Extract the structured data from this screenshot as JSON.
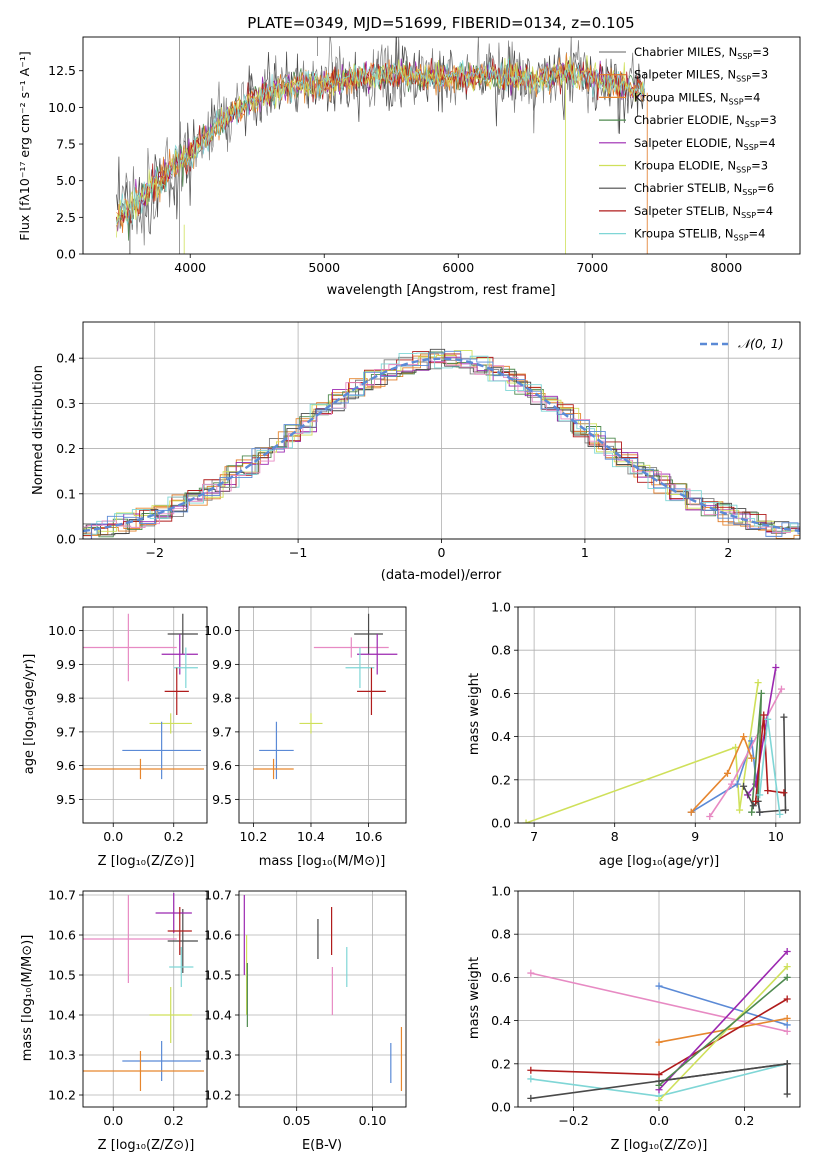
{
  "colors": {
    "chabrier_miles": "#808080",
    "salpeter_miles": "#e07a26",
    "kroupa_miles": "#e6862e",
    "chabrier_elodie": "#4f8a4f",
    "salpeter_elodie": "#9b27b0",
    "kroupa_elodie": "#cfe05a",
    "chabrier_stelib": "#4a4a4a",
    "salpeter_stelib": "#b01c1c",
    "kroupa_stelib": "#7fd6d6",
    "pink": "#e78ac3",
    "blue": "#5b8ad6",
    "gaussian": "#5b8ad6"
  },
  "chart_data": [
    {
      "id": "spectrum",
      "type": "line",
      "title": "PLATE=0349, MJD=51699, FIBERID=0134, z=0.105",
      "xlabel": "wavelength [Angstrom, rest frame]",
      "ylabel": "Flux [fλ10⁻¹⁷ erg cm⁻² s⁻¹ A⁻¹]",
      "xlim": [
        3200,
        8550
      ],
      "ylim": [
        0,
        14.8
      ],
      "xticks": [
        "4000",
        "5000",
        "6000",
        "7000",
        "8000"
      ],
      "yticks": [
        "0.0",
        "2.5",
        "5.0",
        "7.5",
        "10.0",
        "12.5"
      ],
      "grid": false,
      "legend_position": "top-right",
      "legend": [
        {
          "label": "Chabrier MILES, N",
          "sub": "SSP",
          "suffix": "=3",
          "color": "#808080"
        },
        {
          "label": "Salpeter MILES, N",
          "sub": "SSP",
          "suffix": "=3",
          "color": "#e07a26"
        },
        {
          "label": "Kroupa MILES, N",
          "sub": "SSP",
          "suffix": "=4",
          "color": "#e6862e"
        },
        {
          "label": "Chabrier ELODIE, N",
          "sub": "SSP",
          "suffix": "=3",
          "color": "#4f8a4f"
        },
        {
          "label": "Salpeter ELODIE, N",
          "sub": "SSP",
          "suffix": "=4",
          "color": "#9b27b0"
        },
        {
          "label": "Kroupa ELODIE, N",
          "sub": "SSP",
          "suffix": "=3",
          "color": "#cfe05a"
        },
        {
          "label": "Chabrier STELIB, N",
          "sub": "SSP",
          "suffix": "=6",
          "color": "#4a4a4a"
        },
        {
          "label": "Salpeter STELIB, N",
          "sub": "SSP",
          "suffix": "=4",
          "color": "#b01c1c"
        },
        {
          "label": "Kroupa STELIB, N",
          "sub": "SSP",
          "suffix": "=4",
          "color": "#7fd6d6"
        }
      ],
      "continuum": {
        "x": [
          3450,
          3550,
          3650,
          3750,
          3850,
          3950,
          4050,
          4150,
          4300,
          4450,
          4600,
          4800,
          5000,
          5200,
          5400,
          5600,
          5800,
          6000,
          6200,
          6400,
          6600,
          6800,
          7000,
          7200,
          7400
        ],
        "y": [
          2.5,
          3.0,
          3.9,
          5.0,
          5.8,
          6.5,
          7.3,
          8.2,
          9.5,
          10.3,
          11.1,
          11.5,
          11.6,
          12.0,
          12.2,
          12.2,
          12.0,
          12.1,
          12.2,
          12.0,
          11.9,
          12.3,
          12.0,
          11.6,
          11.0
        ]
      }
    },
    {
      "id": "residuals",
      "type": "histogram",
      "xlabel": "(data-model)/error",
      "ylabel": "Normed distribution",
      "xlim": [
        -2.5,
        2.5
      ],
      "ylim": [
        0,
        0.48
      ],
      "xticks": [
        "−2",
        "−1",
        "0",
        "1",
        "2"
      ],
      "yticks": [
        "0.0",
        "0.1",
        "0.2",
        "0.3",
        "0.4"
      ],
      "grid": true,
      "legend_position": "top-right",
      "legend_label": "𝒩(0, 1)",
      "gaussian": {
        "mean": 0,
        "sigma": 1
      }
    },
    {
      "id": "age_vs_z",
      "type": "errorbar",
      "xlabel": "Z [log₁₀(Z/Z⊙)]",
      "ylabel": "age  [log₁₀(age/yr)]",
      "xlim": [
        -0.1,
        0.31
      ],
      "ylim": [
        9.43,
        10.07
      ],
      "xticks": [
        0.0,
        0.2
      ],
      "yticks": [
        9.5,
        9.6,
        9.7,
        9.8,
        9.9,
        10.0
      ],
      "points": [
        {
          "x": 0.05,
          "xerr": 0.16,
          "y": 9.95,
          "yerr": 0.1,
          "color": "#e78ac3"
        },
        {
          "x": 0.23,
          "xerr": 0.05,
          "y": 9.99,
          "yerr": 0.06,
          "color": "#4a4a4a"
        },
        {
          "x": 0.22,
          "xerr": 0.06,
          "y": 9.93,
          "yerr": 0.06,
          "color": "#9b27b0"
        },
        {
          "x": 0.24,
          "xerr": 0.04,
          "y": 9.89,
          "yerr": 0.06,
          "color": "#7fd6d6"
        },
        {
          "x": 0.21,
          "xerr": 0.04,
          "y": 9.82,
          "yerr": 0.07,
          "color": "#b01c1c"
        },
        {
          "x": 0.19,
          "xerr": 0.07,
          "y": 9.725,
          "yerr": 0.03,
          "color": "#cfe05a"
        },
        {
          "x": 0.16,
          "xerr": 0.13,
          "y": 9.645,
          "yerr": 0.085,
          "color": "#5b8ad6"
        },
        {
          "x": 0.09,
          "xerr": 0.21,
          "y": 9.59,
          "yerr": 0.03,
          "color": "#e6862e"
        }
      ]
    },
    {
      "id": "age_vs_mass",
      "type": "errorbar",
      "xlabel": "mass [log₁₀(M/M⊙)]",
      "ylabel": "",
      "xlim": [
        10.15,
        10.73
      ],
      "ylim": [
        9.43,
        10.07
      ],
      "xticks": [
        10.2,
        10.4,
        10.6
      ],
      "yticks": [
        9.5,
        9.6,
        9.7,
        9.8,
        9.9,
        10.0
      ],
      "points": [
        {
          "x": 10.54,
          "xerr": 0.13,
          "y": 9.95,
          "yerr": 0.03,
          "color": "#e78ac3"
        },
        {
          "x": 10.6,
          "xerr": 0.05,
          "y": 9.99,
          "yerr": 0.06,
          "color": "#4a4a4a"
        },
        {
          "x": 10.63,
          "xerr": 0.07,
          "y": 9.93,
          "yerr": 0.06,
          "color": "#9b27b0"
        },
        {
          "x": 10.57,
          "xerr": 0.05,
          "y": 9.89,
          "yerr": 0.06,
          "color": "#7fd6d6"
        },
        {
          "x": 10.61,
          "xerr": 0.05,
          "y": 9.82,
          "yerr": 0.07,
          "color": "#b01c1c"
        },
        {
          "x": 10.4,
          "xerr": 0.04,
          "y": 9.725,
          "yerr": 0.03,
          "color": "#cfe05a"
        },
        {
          "x": 10.28,
          "xerr": 0.06,
          "y": 9.645,
          "yerr": 0.085,
          "color": "#5b8ad6"
        },
        {
          "x": 10.27,
          "xerr": 0.07,
          "y": 9.59,
          "yerr": 0.03,
          "color": "#e6862e"
        }
      ]
    },
    {
      "id": "mass_weight_vs_age",
      "type": "line",
      "xlabel": "age  [log₁₀(age/yr)]",
      "ylabel": "mass weight",
      "xlim": [
        6.8,
        10.3
      ],
      "ylim": [
        0,
        1
      ],
      "xticks": [
        7,
        8,
        9,
        10
      ],
      "yticks": [
        0.0,
        0.2,
        0.4,
        0.6,
        0.8,
        1.0
      ],
      "grid": true,
      "series": [
        {
          "color": "#cfe05a",
          "x": [
            6.9,
            9.5,
            9.55,
            9.78
          ],
          "y": [
            0.0,
            0.35,
            0.06,
            0.65
          ]
        },
        {
          "color": "#5b8ad6",
          "x": [
            8.95,
            9.52,
            9.7,
            9.8
          ],
          "y": [
            0.05,
            0.18,
            0.38,
            0.05
          ]
        },
        {
          "color": "#e78ac3",
          "x": [
            9.18,
            9.45,
            10.07
          ],
          "y": [
            0.03,
            0.18,
            0.62
          ]
        },
        {
          "color": "#e6862e",
          "x": [
            8.95,
            9.4,
            9.6,
            9.7
          ],
          "y": [
            0.05,
            0.23,
            0.4,
            0.3
          ]
        },
        {
          "color": "#9b27b0",
          "x": [
            9.65,
            9.75,
            10.0
          ],
          "y": [
            0.13,
            0.18,
            0.72
          ]
        },
        {
          "color": "#4f8a4f",
          "x": [
            9.7,
            9.82,
            9.78
          ],
          "y": [
            0.05,
            0.6,
            0.1
          ]
        },
        {
          "color": "#4a4a4a",
          "x": [
            9.6,
            9.72,
            9.78,
            9.8,
            10.12,
            10.1
          ],
          "y": [
            0.17,
            0.08,
            0.1,
            0.05,
            0.06,
            0.49
          ]
        },
        {
          "color": "#b01c1c",
          "x": [
            9.75,
            9.85,
            9.9,
            10.1
          ],
          "y": [
            0.1,
            0.5,
            0.15,
            0.14
          ]
        },
        {
          "color": "#7fd6d6",
          "x": [
            9.8,
            9.9,
            10.05
          ],
          "y": [
            0.13,
            0.48,
            0.04
          ]
        }
      ]
    },
    {
      "id": "mass_vs_z",
      "type": "errorbar",
      "xlabel": "Z [log₁₀(Z/Z⊙)]",
      "ylabel": "mass [log₁₀(M/M⊙)]",
      "xlim": [
        -0.1,
        0.31
      ],
      "ylim": [
        10.17,
        10.71
      ],
      "xticks": [
        0.0,
        0.2
      ],
      "yticks": [
        10.2,
        10.3,
        10.4,
        10.5,
        10.6,
        10.7
      ],
      "points": [
        {
          "x": 0.05,
          "xerr": 0.16,
          "y": 10.59,
          "yerr": 0.11,
          "color": "#e78ac3"
        },
        {
          "x": 0.23,
          "xerr": 0.05,
          "y": 10.585,
          "yerr": 0.08,
          "color": "#4a4a4a"
        },
        {
          "x": 0.2,
          "xerr": 0.06,
          "y": 10.655,
          "yerr": 0.05,
          "color": "#9b27b0"
        },
        {
          "x": 0.22,
          "xerr": 0.04,
          "y": 10.61,
          "yerr": 0.06,
          "color": "#b01c1c"
        },
        {
          "x": 0.225,
          "xerr": 0.04,
          "y": 10.52,
          "yerr": 0.05,
          "color": "#7fd6d6"
        },
        {
          "x": 0.19,
          "xerr": 0.07,
          "y": 10.4,
          "yerr": 0.07,
          "color": "#cfe05a"
        },
        {
          "x": 0.16,
          "xerr": 0.13,
          "y": 10.285,
          "yerr": 0.05,
          "color": "#5b8ad6"
        },
        {
          "x": 0.09,
          "xerr": 0.21,
          "y": 10.26,
          "yerr": 0.05,
          "color": "#e6862e"
        }
      ]
    },
    {
      "id": "mass_vs_ebv",
      "type": "errorbar",
      "xlabel": "E(B-V)",
      "ylabel": "",
      "xlim": [
        0.012,
        0.122
      ],
      "ylim": [
        10.17,
        10.71
      ],
      "xticks": [
        "0.05",
        "0.10"
      ],
      "yticks": [
        10.2,
        10.3,
        10.4,
        10.5,
        10.6,
        10.7
      ],
      "points": [
        {
          "x": 0.0155,
          "xerr": 0,
          "y": 10.6,
          "yerr": 0.1,
          "color": "#9b27b0"
        },
        {
          "x": 0.017,
          "xerr": 0,
          "y": 10.5,
          "yerr": 0.1,
          "color": "#cfe05a"
        },
        {
          "x": 0.0175,
          "xerr": 0,
          "y": 10.45,
          "yerr": 0.08,
          "color": "#4f8a4f"
        },
        {
          "x": 0.064,
          "xerr": 0,
          "y": 10.59,
          "yerr": 0.05,
          "color": "#4a4a4a"
        },
        {
          "x": 0.073,
          "xerr": 0,
          "y": 10.61,
          "yerr": 0.06,
          "color": "#b01c1c"
        },
        {
          "x": 0.0735,
          "xerr": 0,
          "y": 10.46,
          "yerr": 0.06,
          "color": "#e78ac3"
        },
        {
          "x": 0.083,
          "xerr": 0,
          "y": 10.52,
          "yerr": 0.05,
          "color": "#7fd6d6"
        },
        {
          "x": 0.112,
          "xerr": 0,
          "y": 10.28,
          "yerr": 0.05,
          "color": "#5b8ad6"
        },
        {
          "x": 0.119,
          "xerr": 0,
          "y": 10.29,
          "yerr": 0.08,
          "color": "#e6862e"
        }
      ]
    },
    {
      "id": "mass_weight_vs_z",
      "type": "line",
      "xlabel": "Z [log₁₀(Z/Z⊙)]",
      "ylabel": "mass weight",
      "xlim": [
        -0.33,
        0.33
      ],
      "ylim": [
        0,
        1
      ],
      "xticks": [
        "−0.2",
        "0.0",
        "0.2"
      ],
      "xtick_values": [
        -0.2,
        0.0,
        0.2
      ],
      "yticks": [
        0.0,
        0.2,
        0.4,
        0.6,
        0.8,
        1.0
      ],
      "grid": true,
      "series": [
        {
          "color": "#e78ac3",
          "x": [
            -0.3,
            0.3
          ],
          "y": [
            0.62,
            0.35
          ]
        },
        {
          "color": "#5b8ad6",
          "x": [
            0.0,
            0.3
          ],
          "y": [
            0.56,
            0.38
          ]
        },
        {
          "color": "#e6862e",
          "x": [
            0.0,
            0.3
          ],
          "y": [
            0.3,
            0.41
          ]
        },
        {
          "color": "#b01c1c",
          "x": [
            -0.3,
            0.0,
            0.3
          ],
          "y": [
            0.17,
            0.15,
            0.5
          ]
        },
        {
          "color": "#7fd6d6",
          "x": [
            -0.3,
            0.0,
            0.3
          ],
          "y": [
            0.13,
            0.05,
            0.2
          ]
        },
        {
          "color": "#4a4a4a",
          "x": [
            -0.3,
            0.3,
            0.3
          ],
          "y": [
            0.04,
            0.2,
            0.06
          ]
        },
        {
          "color": "#9b27b0",
          "x": [
            0.0,
            0.3
          ],
          "y": [
            0.08,
            0.72
          ]
        },
        {
          "color": "#cfe05a",
          "x": [
            0.0,
            0.3
          ],
          "y": [
            0.03,
            0.65
          ]
        },
        {
          "color": "#4f8a4f",
          "x": [
            0.0,
            0.3
          ],
          "y": [
            0.1,
            0.6
          ]
        },
        {
          "color": "#4a4a4a",
          "x": [
            0.0,
            0.3
          ],
          "y": [
            0.12,
            0.2
          ]
        }
      ]
    }
  ]
}
